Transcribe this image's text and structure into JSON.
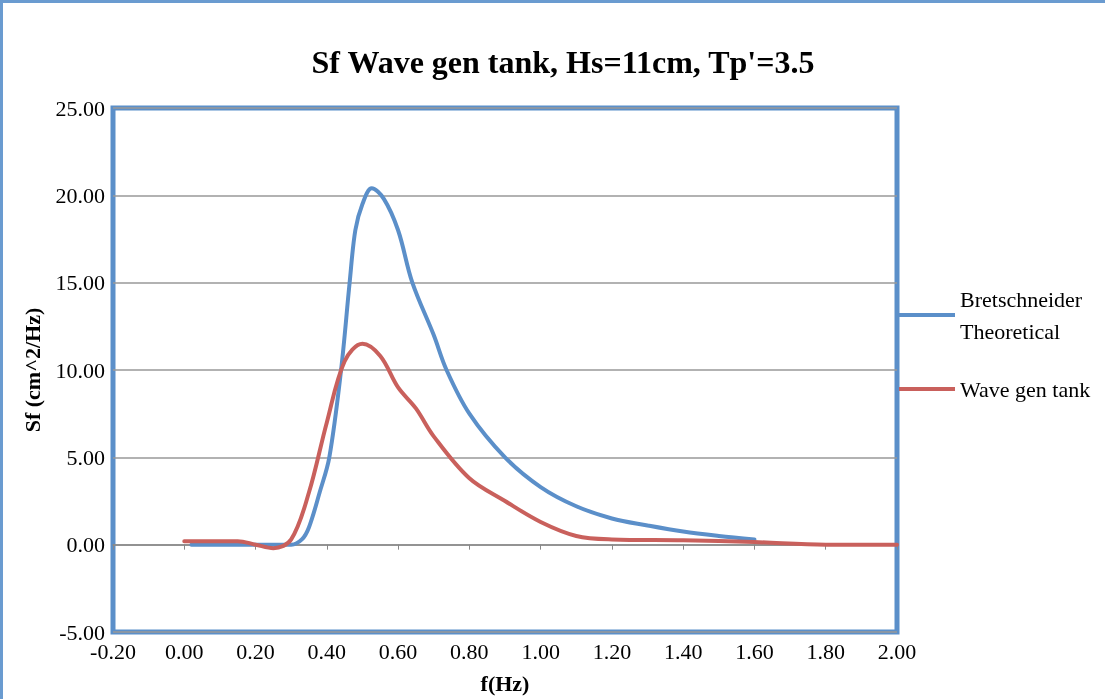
{
  "chart_data": {
    "type": "line",
    "title": "Sf Wave gen tank, Hs=11cm, Tp'=3.5",
    "xlabel": "f(Hz)",
    "ylabel": "Sf (cm^2/Hz)",
    "series": [
      {
        "name": "Bretschneider Theoretical",
        "color": "#5b8fc9",
        "x": [
          0.02,
          0.1,
          0.2,
          0.3,
          0.33,
          0.35,
          0.38,
          0.407,
          0.44,
          0.464,
          0.48,
          0.5,
          0.526,
          0.56,
          0.6,
          0.64,
          0.7,
          0.736,
          0.8,
          0.9,
          1.0,
          1.1,
          1.2,
          1.3,
          1.4,
          1.5,
          1.6
        ],
        "values": [
          0,
          0,
          0,
          0,
          0.3,
          1,
          3,
          5,
          10,
          15,
          18,
          19.5,
          20.4,
          19.8,
          18,
          15,
          12,
          10,
          7.5,
          5,
          3.3,
          2.2,
          1.5,
          1.1,
          0.75,
          0.5,
          0.3
        ]
      },
      {
        "name": "Wave gen tank",
        "color": "#c9605c",
        "x": [
          0,
          0.05,
          0.1,
          0.15,
          0.2,
          0.25,
          0.3,
          0.35,
          0.4,
          0.45,
          0.5,
          0.55,
          0.6,
          0.65,
          0.7,
          0.8,
          0.9,
          1.0,
          1.1,
          1.2,
          1.4,
          1.6,
          1.8,
          2.0
        ],
        "values": [
          0.2,
          0.2,
          0.2,
          0.2,
          0,
          -0.2,
          0.3,
          3,
          7,
          10.5,
          11.5,
          10.8,
          9,
          7.8,
          6.2,
          3.8,
          2.5,
          1.3,
          0.5,
          0.3,
          0.25,
          0.15,
          0,
          0
        ]
      }
    ],
    "xlim": [
      -0.2,
      2.0
    ],
    "xticks": [
      {
        "value": -0.2,
        "label": "-0.20"
      },
      {
        "value": 0,
        "label": "0.00"
      },
      {
        "value": 0.2,
        "label": "0.20"
      },
      {
        "value": 0.4,
        "label": "0.40"
      },
      {
        "value": 0.6,
        "label": "0.60"
      },
      {
        "value": 0.8,
        "label": "0.80"
      },
      {
        "value": 1.0,
        "label": "1.00"
      },
      {
        "value": 1.2,
        "label": "1.20"
      },
      {
        "value": 1.4,
        "label": "1.40"
      },
      {
        "value": 1.6,
        "label": "1.60"
      },
      {
        "value": 1.8,
        "label": "1.80"
      },
      {
        "value": 2.0,
        "label": "2.00"
      }
    ],
    "ylim": [
      -5,
      25
    ],
    "yticks": [
      {
        "value": -5,
        "label": "-5.00"
      },
      {
        "value": 0,
        "label": "0.00"
      },
      {
        "value": 5,
        "label": "5.00"
      },
      {
        "value": 10,
        "label": "10.00"
      },
      {
        "value": 15,
        "label": "15.00"
      },
      {
        "value": 20,
        "label": "20.00"
      },
      {
        "value": 25,
        "label": "25.00"
      }
    ],
    "grid": "y",
    "legend": "right",
    "marker": "none",
    "line_style": "solid"
  }
}
